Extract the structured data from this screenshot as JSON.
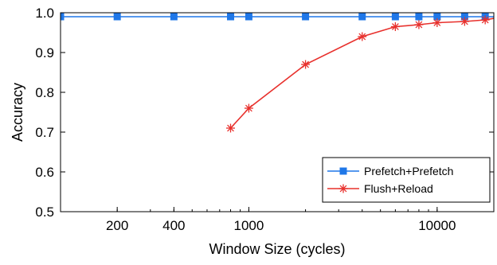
{
  "chart_data": {
    "type": "line",
    "title": "",
    "xlabel": "Window Size (cycles)",
    "ylabel": "Accuracy",
    "x_scale": "log",
    "xlim": [
      100,
      20000
    ],
    "ylim": [
      0.5,
      1.0
    ],
    "x_ticks": [
      200,
      400,
      1000,
      10000
    ],
    "x_tick_labels": [
      "200",
      "400",
      "1000",
      "10000"
    ],
    "y_ticks": [
      0.5,
      0.6,
      0.7,
      0.8,
      0.9,
      1.0
    ],
    "y_tick_labels": [
      "0.5",
      "0.6",
      "0.7",
      "0.8",
      "0.9",
      "1.0"
    ],
    "grid": false,
    "legend_position": "bottom-right",
    "series": [
      {
        "name": "Prefetch+Prefetch",
        "color": "#1f77e8",
        "marker": "square",
        "x": [
          100,
          200,
          400,
          800,
          1000,
          2000,
          4000,
          6000,
          8000,
          10000,
          14000,
          18000
        ],
        "y": [
          0.99,
          0.99,
          0.99,
          0.99,
          0.99,
          0.99,
          0.99,
          0.99,
          0.99,
          0.99,
          0.99,
          0.99
        ]
      },
      {
        "name": "Flush+Reload",
        "color": "#e8302c",
        "marker": "asterisk",
        "x": [
          800,
          1000,
          2000,
          4000,
          6000,
          8000,
          10000,
          14000,
          18000
        ],
        "y": [
          0.71,
          0.76,
          0.87,
          0.94,
          0.965,
          0.97,
          0.975,
          0.978,
          0.982
        ]
      }
    ]
  }
}
